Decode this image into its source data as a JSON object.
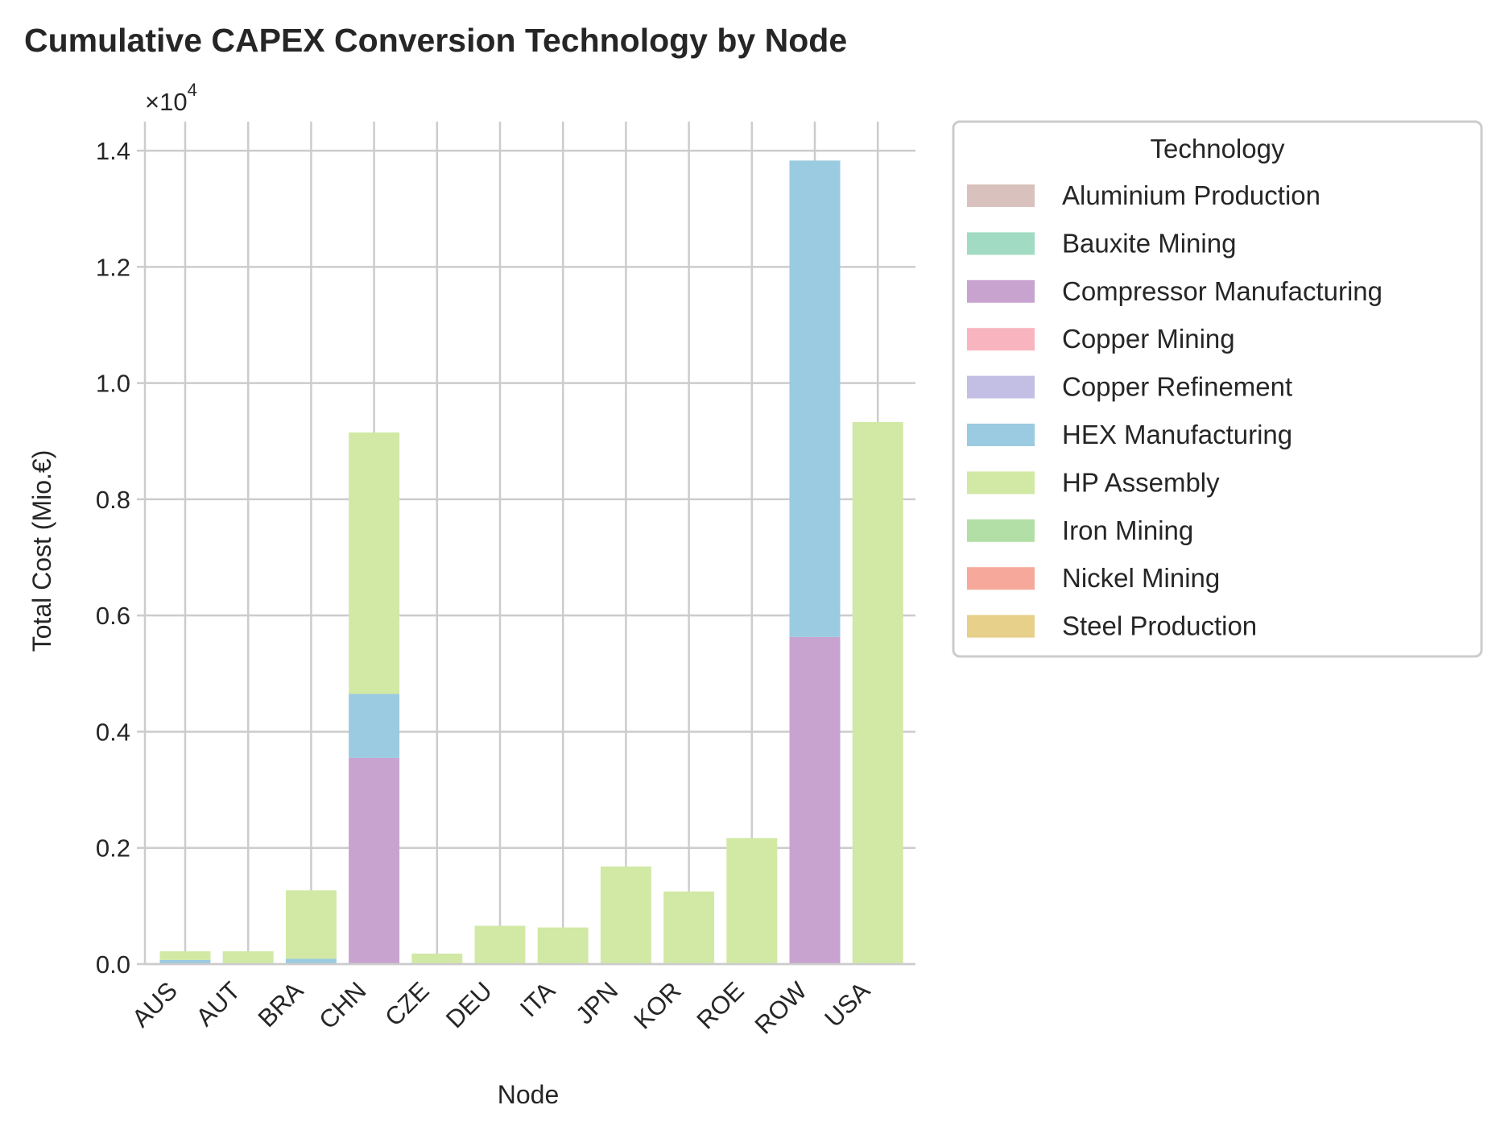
{
  "chart_data": {
    "type": "bar",
    "stacked": true,
    "title": "Cumulative CAPEX Conversion Technology by Node",
    "xlabel": "Node",
    "ylabel": "Total Cost (Mio.€)",
    "y_scale_label": "×10",
    "y_scale_exponent": "4",
    "ylim": [
      0,
      14500
    ],
    "yticks": [
      0,
      2000,
      4000,
      6000,
      8000,
      10000,
      12000,
      14000
    ],
    "ytick_labels": [
      "0.0",
      "0.2",
      "0.4",
      "0.6",
      "0.8",
      "1.0",
      "1.2",
      "1.4"
    ],
    "grid": true,
    "legend_title": "Technology",
    "legend_placement": "outside-right",
    "categories": [
      "AUS",
      "AUT",
      "BRA",
      "CHN",
      "CZE",
      "DEU",
      "ITA",
      "JPN",
      "KOR",
      "ROE",
      "ROW",
      "USA"
    ],
    "series": [
      {
        "name": "Aluminium Production",
        "color": "#d9c2bd",
        "values": [
          0,
          0,
          0,
          0,
          0,
          0,
          0,
          0,
          0,
          0,
          0,
          0
        ]
      },
      {
        "name": "Bauxite Mining",
        "color": "#a1dbc3",
        "values": [
          0,
          0,
          0,
          0,
          0,
          0,
          0,
          0,
          0,
          0,
          0,
          0
        ]
      },
      {
        "name": "Compressor Manufacturing",
        "color": "#c8a3d0",
        "values": [
          0,
          0,
          0,
          3550,
          0,
          0,
          0,
          0,
          0,
          0,
          5630,
          0
        ]
      },
      {
        "name": "Copper Mining",
        "color": "#f8b5c0",
        "values": [
          0,
          0,
          0,
          0,
          0,
          0,
          0,
          0,
          0,
          0,
          0,
          0
        ]
      },
      {
        "name": "Copper Refinement",
        "color": "#c3bee3",
        "values": [
          0,
          0,
          0,
          0,
          0,
          0,
          0,
          0,
          0,
          0,
          0,
          0
        ]
      },
      {
        "name": "HEX Manufacturing",
        "color": "#9acbe1",
        "values": [
          70,
          0,
          90,
          1100,
          0,
          0,
          0,
          0,
          0,
          0,
          8200,
          0
        ]
      },
      {
        "name": "HP Assembly",
        "color": "#d1e9a5",
        "values": [
          150,
          220,
          1180,
          4500,
          180,
          660,
          630,
          1680,
          1250,
          2170,
          0,
          9330
        ]
      },
      {
        "name": "Iron Mining",
        "color": "#b2dfa5",
        "values": [
          0,
          0,
          0,
          0,
          0,
          0,
          0,
          0,
          0,
          0,
          0,
          0
        ]
      },
      {
        "name": "Nickel Mining",
        "color": "#f6a99a",
        "values": [
          0,
          0,
          0,
          0,
          0,
          0,
          0,
          0,
          0,
          0,
          0,
          0
        ]
      },
      {
        "name": "Steel Production",
        "color": "#e6d08a",
        "values": [
          0,
          0,
          0,
          0,
          0,
          0,
          0,
          0,
          0,
          0,
          0,
          0
        ]
      }
    ]
  }
}
